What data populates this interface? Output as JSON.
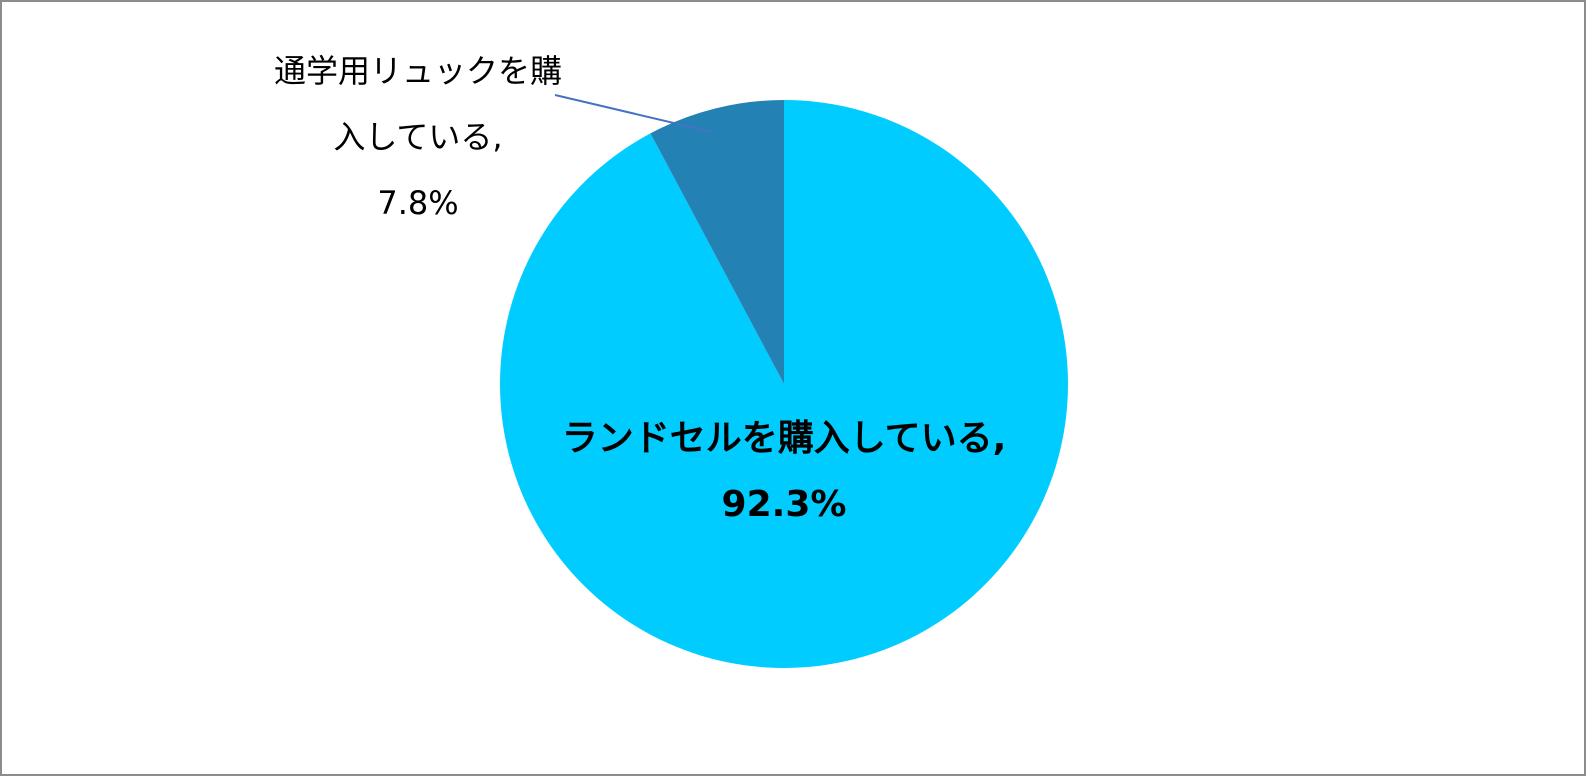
{
  "chart_data": {
    "type": "pie",
    "categories": [
      "ランドセルを購入している,",
      "通学用リュックを購入している,"
    ],
    "values": [
      92.3,
      7.8
    ],
    "value_labels": [
      "92.3%",
      "7.8%"
    ],
    "colors": [
      "#00ccff",
      "#2481b3"
    ]
  }
}
